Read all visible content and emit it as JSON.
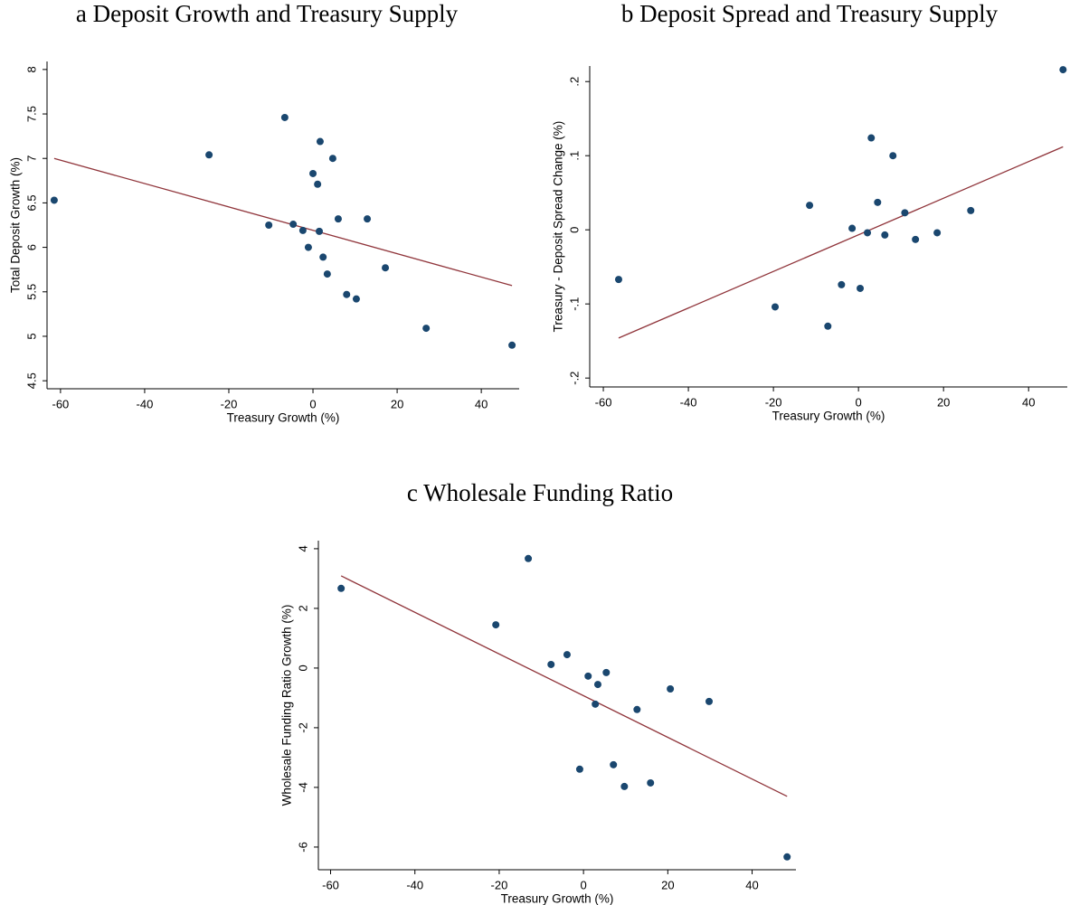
{
  "chart_data": [
    {
      "type": "scatter",
      "title": "a Deposit Growth and Treasury Supply",
      "x_label": "Treasury Growth (%)",
      "y_label": "Total Deposit Growth (%)",
      "x": [
        -61.5,
        -24.7,
        -6.7,
        1.7,
        0,
        4.7,
        1.1,
        -10.5,
        -4.7,
        -2.4,
        1.5,
        6.0,
        12.9,
        -1.1,
        2.4,
        3.4,
        17.2,
        8.0,
        10.3,
        26.9,
        47.3
      ],
      "values": [
        6.53,
        7.04,
        7.46,
        7.19,
        6.83,
        7.0,
        6.71,
        6.25,
        6.26,
        6.19,
        6.18,
        6.32,
        6.32,
        6.0,
        5.89,
        5.7,
        5.77,
        5.47,
        5.42,
        5.09,
        4.9
      ],
      "color": "#1a476f",
      "fit": {
        "x": [
          -61.5,
          47.3
        ],
        "values": [
          7.0,
          5.57
        ],
        "color": "#90353b"
      },
      "xlim": [
        -63.2,
        49.0
      ],
      "ylim": [
        4.41,
        8.09
      ],
      "xticks": [
        -60,
        -40,
        -20,
        0,
        20,
        40
      ],
      "yticks": [
        4.5,
        5,
        5.5,
        6,
        6.5,
        7,
        7.5,
        8
      ]
    },
    {
      "type": "scatter",
      "title": "b Deposit Spread and Treasury Supply",
      "x_label": "Treasury Growth (%)",
      "y_label": "Treasury - Deposit Spread Change (%)",
      "x": [
        -56.4,
        -19.6,
        -11.5,
        -7.2,
        -4.0,
        -1.5,
        0.4,
        2.1,
        3.0,
        4.5,
        6.2,
        8.1,
        10.9,
        13.4,
        18.5,
        26.4,
        48.1
      ],
      "values": [
        -0.067,
        -0.104,
        0.033,
        -0.13,
        -0.074,
        0.002,
        -0.079,
        -0.004,
        0.124,
        0.037,
        -0.007,
        0.1,
        0.023,
        -0.013,
        -0.004,
        0.026,
        0.216
      ],
      "color": "#1a476f",
      "fit": {
        "x": [
          -56.4,
          48.1
        ],
        "values": [
          -0.146,
          0.112
        ],
        "color": "#90353b"
      },
      "xlim": [
        -63.2,
        49.1
      ],
      "ylim": [
        -0.212,
        0.221
      ],
      "xticks": [
        -60,
        -40,
        -20,
        0,
        20,
        40
      ],
      "yticks": [
        {
          "value": -0.2,
          "label": "-.2"
        },
        {
          "value": -0.1,
          "label": "-.1"
        },
        0,
        {
          "value": 0.1,
          "label": ".1"
        },
        {
          "value": 0.2,
          "label": ".2"
        }
      ]
    },
    {
      "type": "scatter",
      "title": "c Wholesale Funding Ratio",
      "x_label": "Treasury Growth (%)",
      "y_label": "Wholesale Funding Ratio Growth (%)",
      "x": [
        -57.5,
        -20.8,
        -13.1,
        -7.7,
        -3.9,
        -0.9,
        1.1,
        2.8,
        3.4,
        5.4,
        7.1,
        9.7,
        12.7,
        15.9,
        20.6,
        29.8,
        48.3
      ],
      "values": [
        2.67,
        1.45,
        3.67,
        0.12,
        0.45,
        -3.39,
        -0.27,
        -1.21,
        -0.55,
        -0.15,
        -3.24,
        -3.97,
        -1.39,
        -3.85,
        -0.7,
        -1.12,
        -6.33
      ],
      "color": "#1a476f",
      "fit": {
        "x": [
          -57.5,
          48.3
        ],
        "values": [
          3.09,
          -4.3
        ],
        "color": "#90353b"
      },
      "xlim": [
        -62.9,
        50.4
      ],
      "ylim": [
        -6.76,
        4.27
      ],
      "xticks": [
        -60,
        -40,
        -20,
        0,
        20,
        40
      ],
      "yticks": [
        -6,
        -4,
        -2,
        0,
        2,
        4
      ]
    }
  ]
}
